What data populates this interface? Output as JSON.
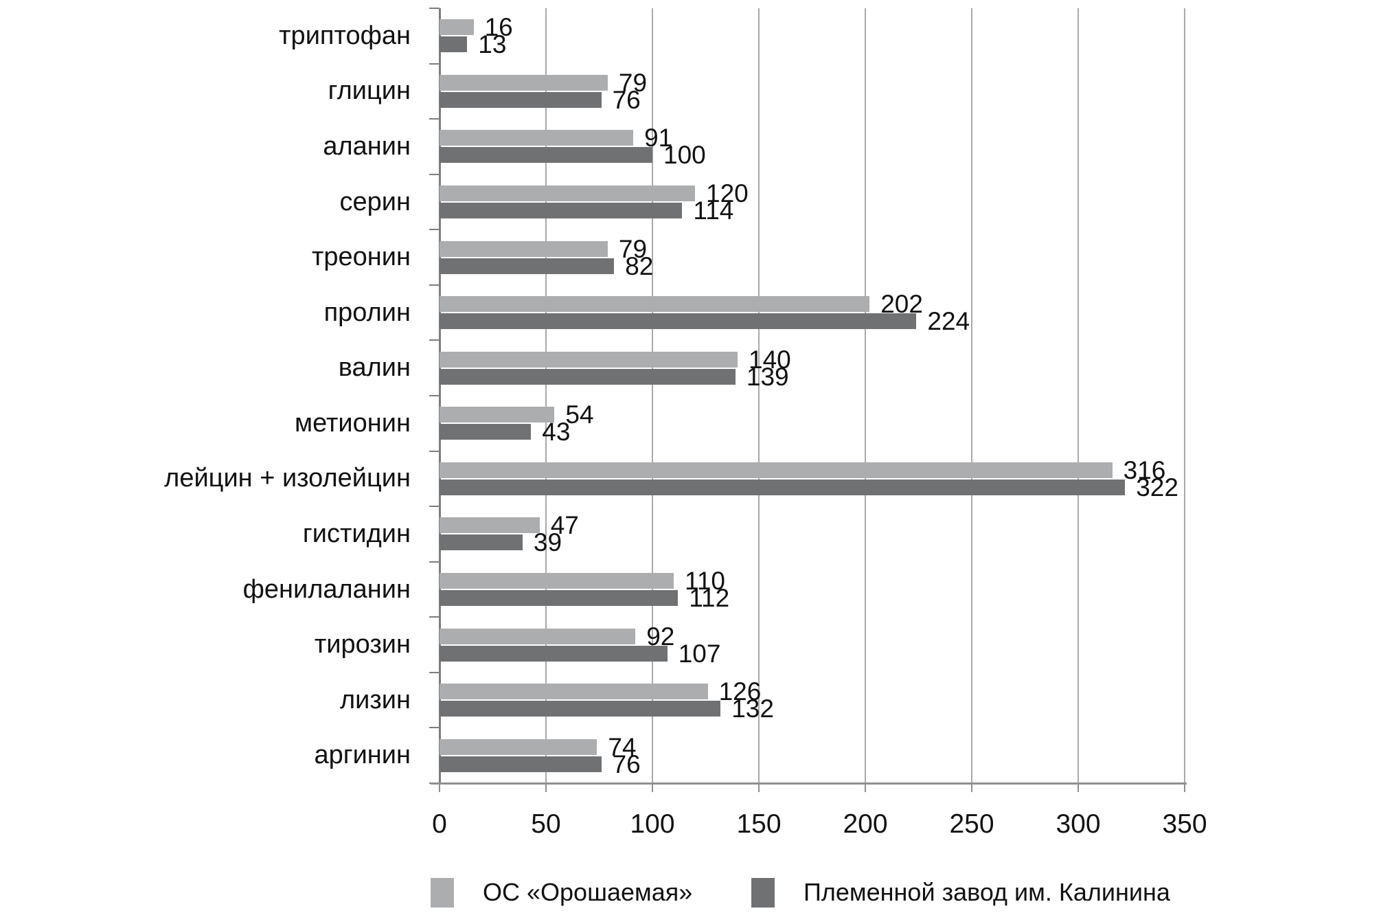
{
  "chart_data": {
    "type": "bar",
    "orientation": "horizontal",
    "title": "",
    "xlabel": "",
    "ylabel": "",
    "categories": [
      "триптофан",
      "глицин",
      "аланин",
      "серин",
      "треонин",
      "пролин",
      "валин",
      "метионин",
      "лейцин + изолейцин",
      "гистидин",
      "фенилаланин",
      "тирозин",
      "лизин",
      "аргинин"
    ],
    "series": [
      {
        "name": "ОС «Орошаемая»",
        "color": "#abadaf",
        "values": [
          16,
          79,
          91,
          120,
          79,
          202,
          140,
          54,
          316,
          47,
          110,
          92,
          126,
          74
        ]
      },
      {
        "name": "Племенной завод им. Калинина",
        "color": "#6f7173",
        "values": [
          13,
          76,
          100,
          114,
          82,
          224,
          139,
          43,
          322,
          39,
          112,
          107,
          132,
          76
        ]
      }
    ],
    "xlim": [
      0,
      350
    ],
    "xticks": [
      0,
      50,
      100,
      150,
      200,
      250,
      300,
      350
    ],
    "grid": "vertical",
    "value_labels": true,
    "legend_position": "bottom"
  },
  "colors": {
    "series_light": "#abadaf",
    "series_dark": "#6f7173",
    "gridline": "#a9a9a9",
    "axis": "#7d7d7d",
    "text": "#111111",
    "background": "#ffffff"
  }
}
